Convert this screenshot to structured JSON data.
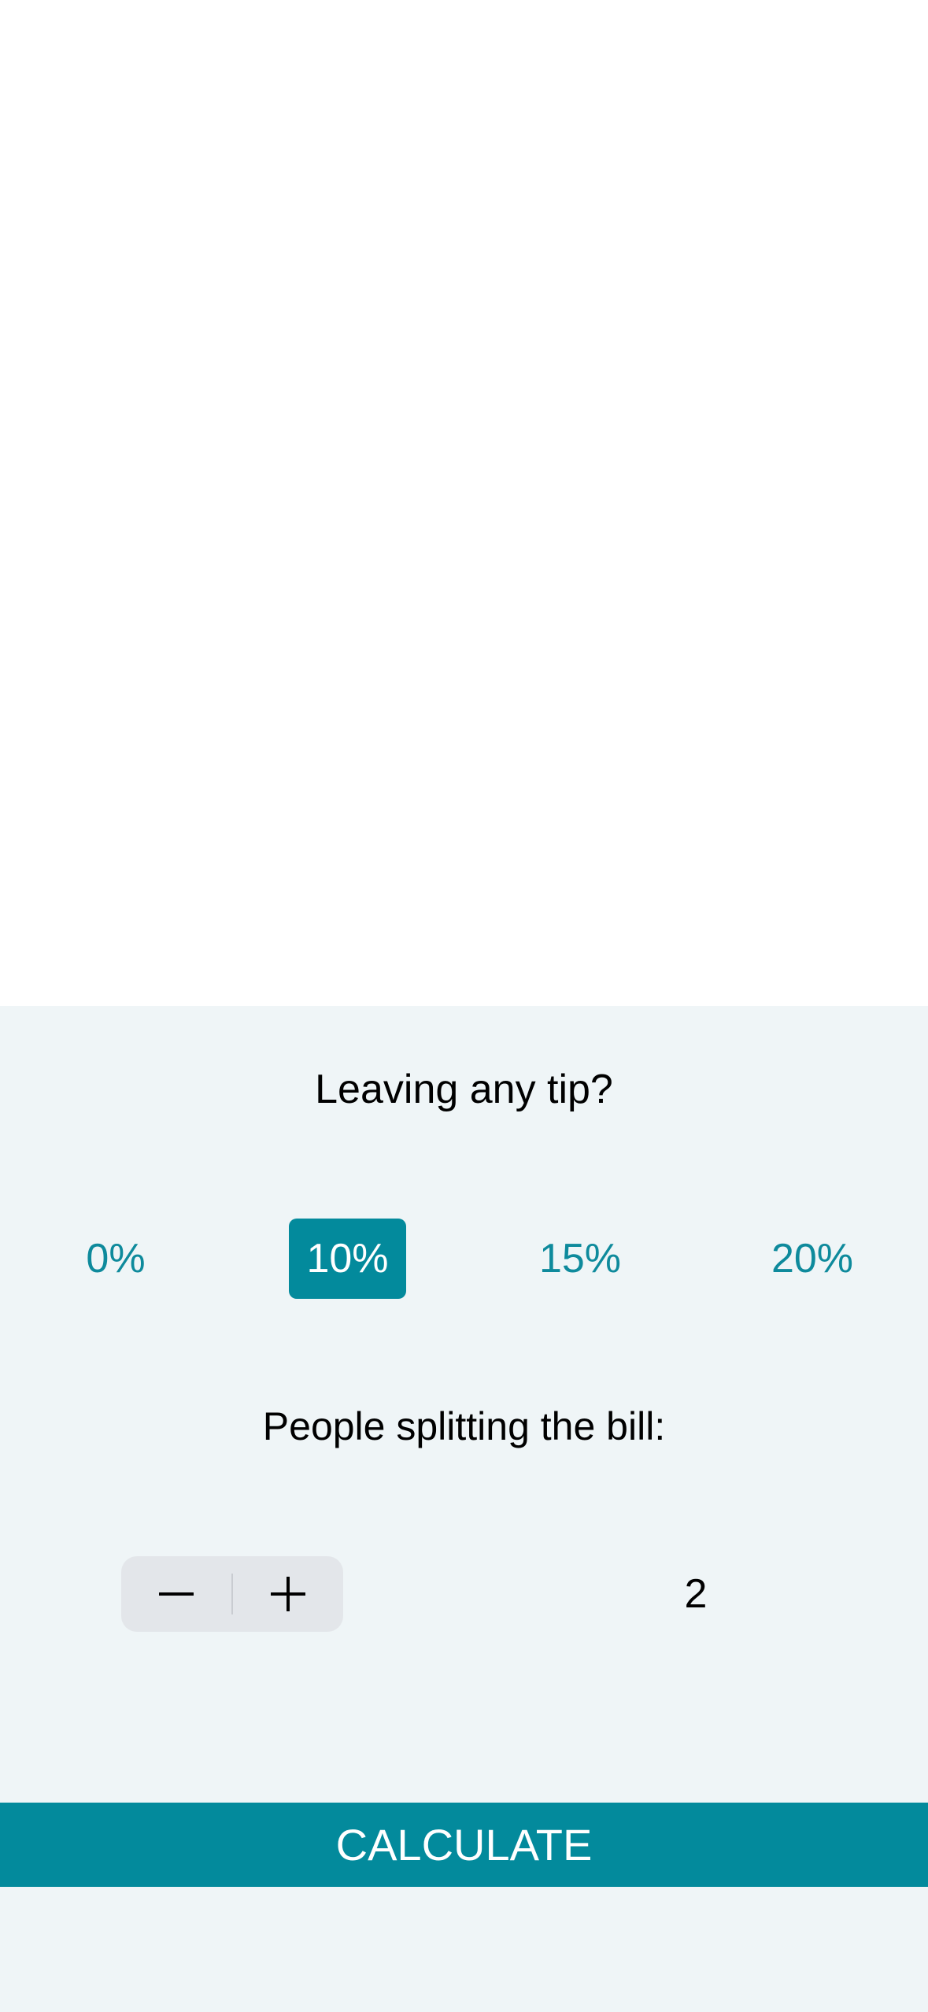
{
  "tip_section": {
    "heading": "Leaving any tip?",
    "options": [
      {
        "label": "0%",
        "selected": false
      },
      {
        "label": "10%",
        "selected": true
      },
      {
        "label": "15%",
        "selected": false
      },
      {
        "label": "20%",
        "selected": false
      }
    ]
  },
  "split_section": {
    "heading": "People splitting the bill:",
    "count": "2",
    "decrement_icon": "minus-icon",
    "increment_icon": "plus-icon"
  },
  "calculate_label": "CALCULATE",
  "colors": {
    "accent": "#038a9c",
    "panel_background": "#eff5f7",
    "stepper_background": "#e3e6ea"
  }
}
